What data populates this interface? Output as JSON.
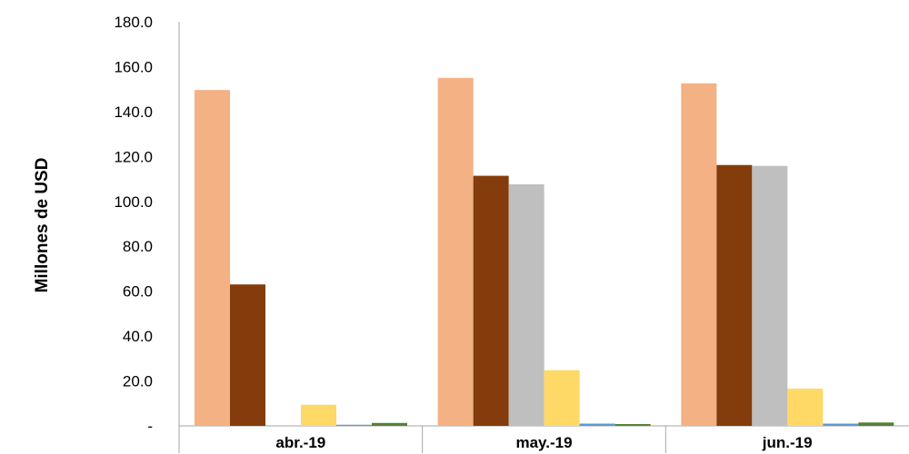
{
  "chart_data": {
    "type": "bar",
    "categories": [
      "abr.-19",
      "may.-19",
      "jun.-19"
    ],
    "series": [
      {
        "color": "#F4B183",
        "values": [
          149.6,
          155.0,
          152.6
        ]
      },
      {
        "color": "#843C0C",
        "values": [
          63.0,
          111.4,
          116.2
        ]
      },
      {
        "color": "#BFBFBF",
        "values": [
          0.0,
          107.6,
          115.8
        ]
      },
      {
        "color": "#FFD966",
        "values": [
          9.4,
          24.8,
          16.6
        ]
      },
      {
        "color": "#5B9BD5",
        "values": [
          0.5,
          1.0,
          1.0
        ]
      },
      {
        "color": "#548235",
        "values": [
          1.3,
          0.8,
          1.5
        ]
      }
    ],
    "xlabel": "",
    "ylabel": "Millones de USD",
    "ylim": [
      0,
      180
    ],
    "yticks": [
      "-",
      "20.0",
      "40.0",
      "60.0",
      "80.0",
      "100.0",
      "120.0",
      "140.0",
      "160.0",
      "180.0"
    ],
    "grid": false,
    "legend": "none"
  }
}
